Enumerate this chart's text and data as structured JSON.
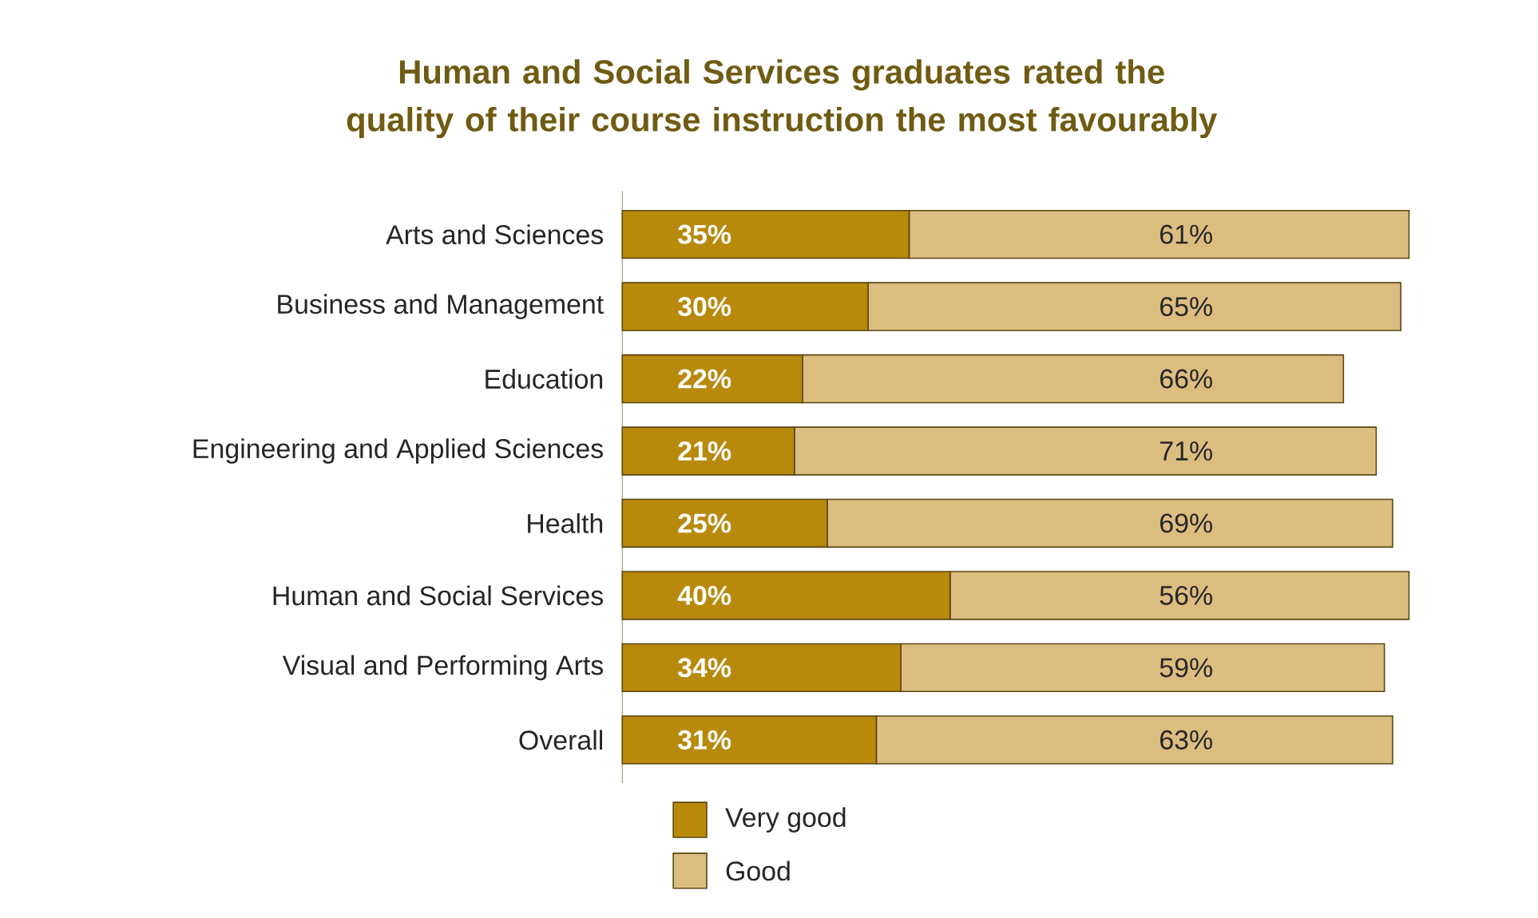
{
  "chart_data": {
    "type": "bar",
    "orientation": "horizontal",
    "stacked": true,
    "title": "Human and Social Services graduates rated the quality of their course instruction the most favourably",
    "categories": [
      "Arts and Sciences",
      "Business and Management",
      "Education",
      "Engineering and Applied Sciences",
      "Health",
      "Human and Social Services",
      "Visual and Performing Arts",
      "Overall"
    ],
    "series": [
      {
        "name": "Very good",
        "color": "#b8890b",
        "values": [
          35,
          30,
          22,
          21,
          25,
          40,
          34,
          31
        ],
        "value_labels": [
          "35%",
          "30%",
          "22%",
          "21%",
          "25%",
          "40%",
          "34%",
          "31%"
        ]
      },
      {
        "name": "Good",
        "color": "#dcbd80",
        "values": [
          61,
          65,
          66,
          71,
          69,
          56,
          59,
          63
        ],
        "value_labels": [
          "61%",
          "65%",
          "66%",
          "71%",
          "69%",
          "56%",
          "59%",
          "63%"
        ]
      }
    ],
    "legend": "bottom"
  }
}
